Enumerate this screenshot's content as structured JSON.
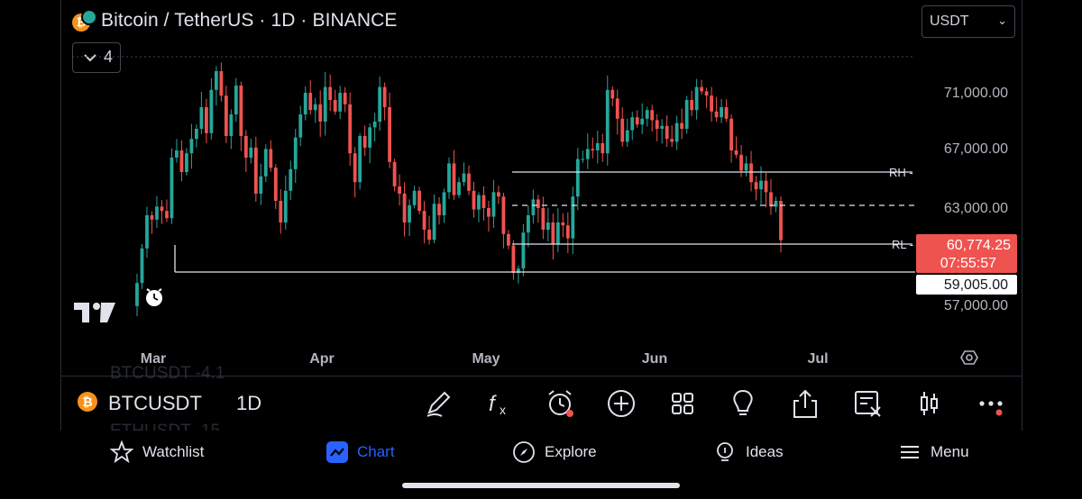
{
  "header": {
    "title": "Bitcoin / TetherUS · 1D · BINANCE",
    "currency": "USDT",
    "indicator_count": "4"
  },
  "chart": {
    "y_ticks": [
      "71,000.00",
      "67,000.00",
      "63,000.00",
      "57,000.00"
    ],
    "x_ticks": [
      "Mar",
      "Apr",
      "May",
      "Jun",
      "Jul"
    ],
    "last_price": "60,774.25",
    "countdown": "07:55:57",
    "support_price": "59,005.00",
    "rh_label": "RH -",
    "rl_label": "RL -",
    "colors": {
      "up": "#26a69a",
      "down": "#ef5350",
      "background": "#000000"
    }
  },
  "chart_data": {
    "type": "candlestick",
    "symbol": "BTCUSDT",
    "interval": "1D",
    "x_range": [
      "Mar",
      "Jul"
    ],
    "ylim": [
      56000,
      73000
    ],
    "horizontal_lines": [
      {
        "label": "RH",
        "value": 65500
      },
      {
        "label": "",
        "value": 63100,
        "style": "dashed"
      },
      {
        "label": "RL",
        "value": 60500
      },
      {
        "label": "",
        "value": 59005
      }
    ],
    "closes": [
      57800,
      60200,
      62500,
      62200,
      63100,
      62800,
      62300,
      66500,
      67000,
      65500,
      66800,
      67800,
      68500,
      70000,
      68200,
      71200,
      72500,
      70800,
      68000,
      69500,
      71500,
      68000,
      66500,
      67200,
      64000,
      65200,
      67100,
      65800,
      63500,
      62000,
      64200,
      65700,
      67900,
      69500,
      71000,
      69800,
      70200,
      69000,
      71400,
      70500,
      69700,
      71000,
      70200,
      66800,
      64800,
      68000,
      67200,
      68600,
      69000,
      71400,
      70000,
      66200,
      64500,
      64000,
      62000,
      63200,
      64200,
      62800,
      61500,
      60800,
      63300,
      62500,
      64100,
      66100,
      63900,
      64800,
      65400,
      64200,
      62900,
      63900,
      63000,
      62400,
      64100,
      63800,
      61200,
      60400,
      58500,
      58800,
      61300,
      62500,
      63600,
      63000,
      61500,
      62000,
      60500,
      62000,
      61800,
      60900,
      63800,
      66400,
      66400,
      67100,
      67000,
      67500,
      66800,
      71200,
      70600,
      69200,
      67600,
      68400,
      69300,
      68800,
      69200,
      69800,
      69100,
      68500,
      68700,
      67800,
      67600,
      68900,
      68500,
      70500,
      69800,
      71400,
      71100,
      70800,
      69700,
      69300,
      70000,
      69200,
      67000,
      66700,
      65600,
      66100,
      64800,
      64300,
      64900,
      64100,
      63100,
      63500,
      60774
    ],
    "data_labels": {
      "last": 60774.25,
      "support": 59005.0
    }
  },
  "toolbar": {
    "symbol": "BTCUSDT",
    "interval": "1D",
    "watchlist_shadow_1": "BTCUSDT -4.1",
    "watchlist_shadow_2": "ETHUSDT -15"
  },
  "nav": {
    "watchlist": "Watchlist",
    "chart": "Chart",
    "explore": "Explore",
    "ideas": "Ideas",
    "menu": "Menu",
    "active_color": "#2962ff"
  }
}
